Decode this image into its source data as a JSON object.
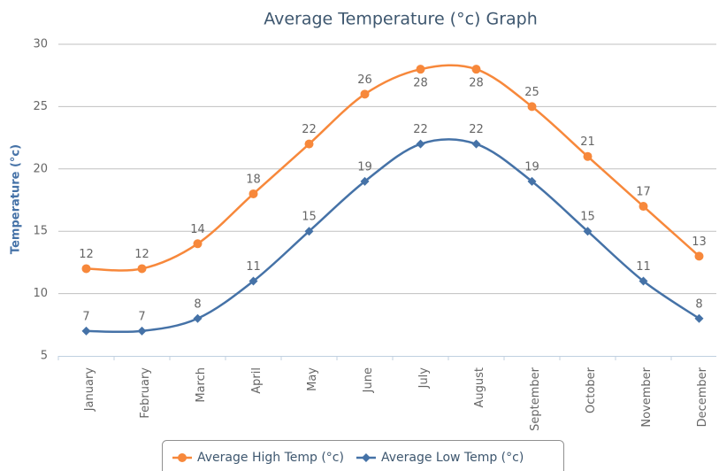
{
  "chart_data": {
    "type": "line",
    "title": "Average Temperature (°c) Graph",
    "y_label": "Temperature (°c)",
    "categories": [
      "January",
      "February",
      "March",
      "April",
      "May",
      "June",
      "July",
      "August",
      "September",
      "October",
      "November",
      "December"
    ],
    "series": [
      {
        "name": "Average High Temp (°c)",
        "color": "#f7883b",
        "marker": "circle",
        "values": [
          12,
          12,
          14,
          18,
          22,
          26,
          28,
          28,
          25,
          21,
          17,
          13
        ]
      },
      {
        "name": "Average Low Temp (°c)",
        "color": "#4572a7",
        "marker": "diamond",
        "values": [
          7,
          7,
          8,
          11,
          15,
          19,
          22,
          22,
          19,
          15,
          11,
          8
        ]
      }
    ],
    "ylim": [
      5,
      30
    ],
    "yticks": [
      5,
      10,
      15,
      20,
      25,
      30
    ],
    "grid": true,
    "smooth": true,
    "legend": "bottom"
  }
}
